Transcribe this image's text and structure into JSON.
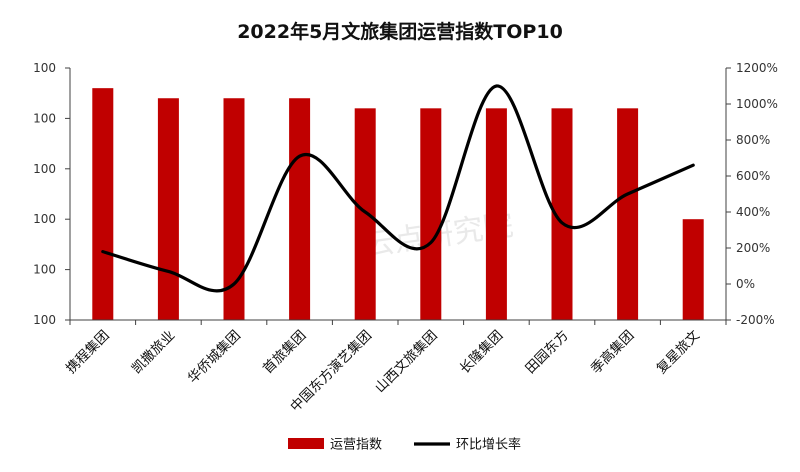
{
  "chart_data": {
    "type": "bar+line",
    "title": "2022年5月文旅集团运营指数TOP10",
    "categories": [
      "携程集团",
      "凯撒旅业",
      "华侨城集团",
      "首旅集团",
      "中国东方演艺集团",
      "山西文旅集团",
      "长隆集团",
      "田园东方",
      "季高集团",
      "复星旅文"
    ],
    "series": [
      {
        "name": "运营指数",
        "type": "bar",
        "axis": "left",
        "color": "#c00000",
        "values": [
          4.6,
          4.4,
          4.4,
          4.4,
          4.2,
          4.2,
          4.2,
          4.2,
          4.2,
          2.0
        ]
      },
      {
        "name": "环比增长率",
        "type": "line",
        "axis": "right",
        "color": "#000000",
        "values": [
          180,
          70,
          0,
          710,
          400,
          230,
          1100,
          340,
          500,
          660
        ]
      }
    ],
    "left_axis": {
      "ylim": [
        0,
        5
      ],
      "tick_labels": [
        "100",
        "100",
        "100",
        "100",
        "100",
        "100"
      ]
    },
    "right_axis": {
      "ylim": [
        -200,
        1200
      ],
      "ticks": [
        -200,
        0,
        200,
        400,
        600,
        800,
        1000,
        1200
      ],
      "tick_labels": [
        "-200%",
        "0%",
        "200%",
        "400%",
        "600%",
        "800%",
        "1000%",
        "1200%"
      ]
    },
    "legend": {
      "position": "bottom"
    },
    "grid": false,
    "watermark": "云点研究院"
  }
}
